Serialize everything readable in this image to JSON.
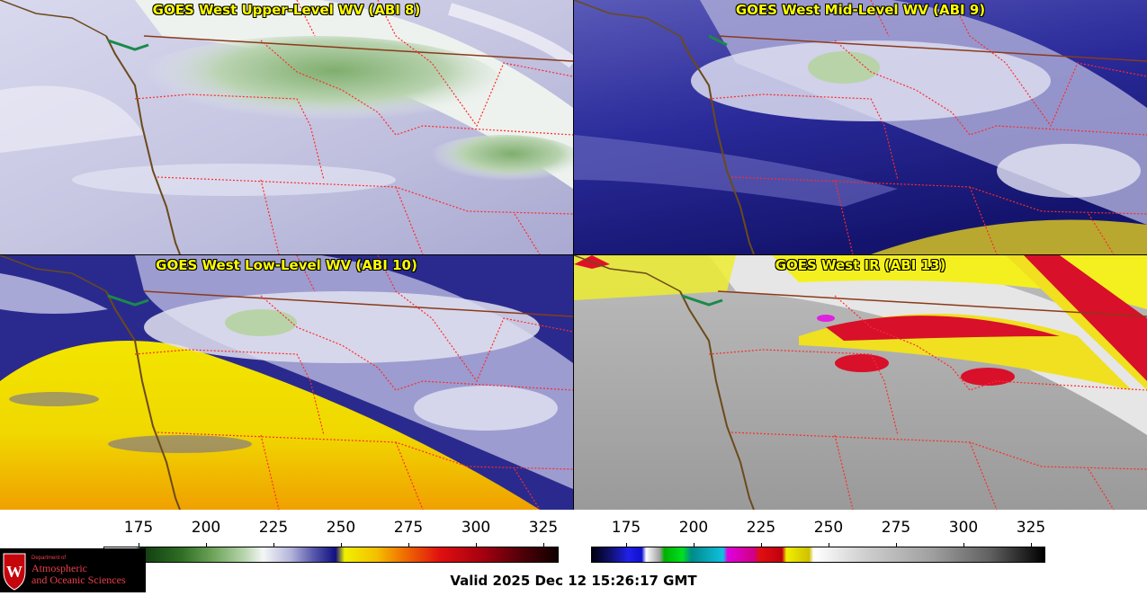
{
  "panels": [
    {
      "title": "GOES West Upper-Level WV (ABI 8)"
    },
    {
      "title": "GOES West Mid-Level WV (ABI 9)"
    },
    {
      "title": "GOES West Low-Level WV (ABI 10)"
    },
    {
      "title": "GOES West IR (ABI 13)"
    }
  ],
  "colorbars": {
    "wv": {
      "ticks": [
        "175",
        "200",
        "225",
        "250",
        "275",
        "300",
        "325"
      ]
    },
    "ir": {
      "ticks": [
        "175",
        "200",
        "225",
        "250",
        "275",
        "300",
        "325"
      ]
    }
  },
  "logo": {
    "line1": "Department of",
    "line2": "Atmospheric",
    "line3": "and Oceanic Sciences",
    "mark": "W"
  },
  "valid_time": "Valid 2025 Dec 12 15:26:17 GMT",
  "colors": {
    "border": "#ff2a2a",
    "coast": "#6b4a1a",
    "title": "#ffff00"
  }
}
